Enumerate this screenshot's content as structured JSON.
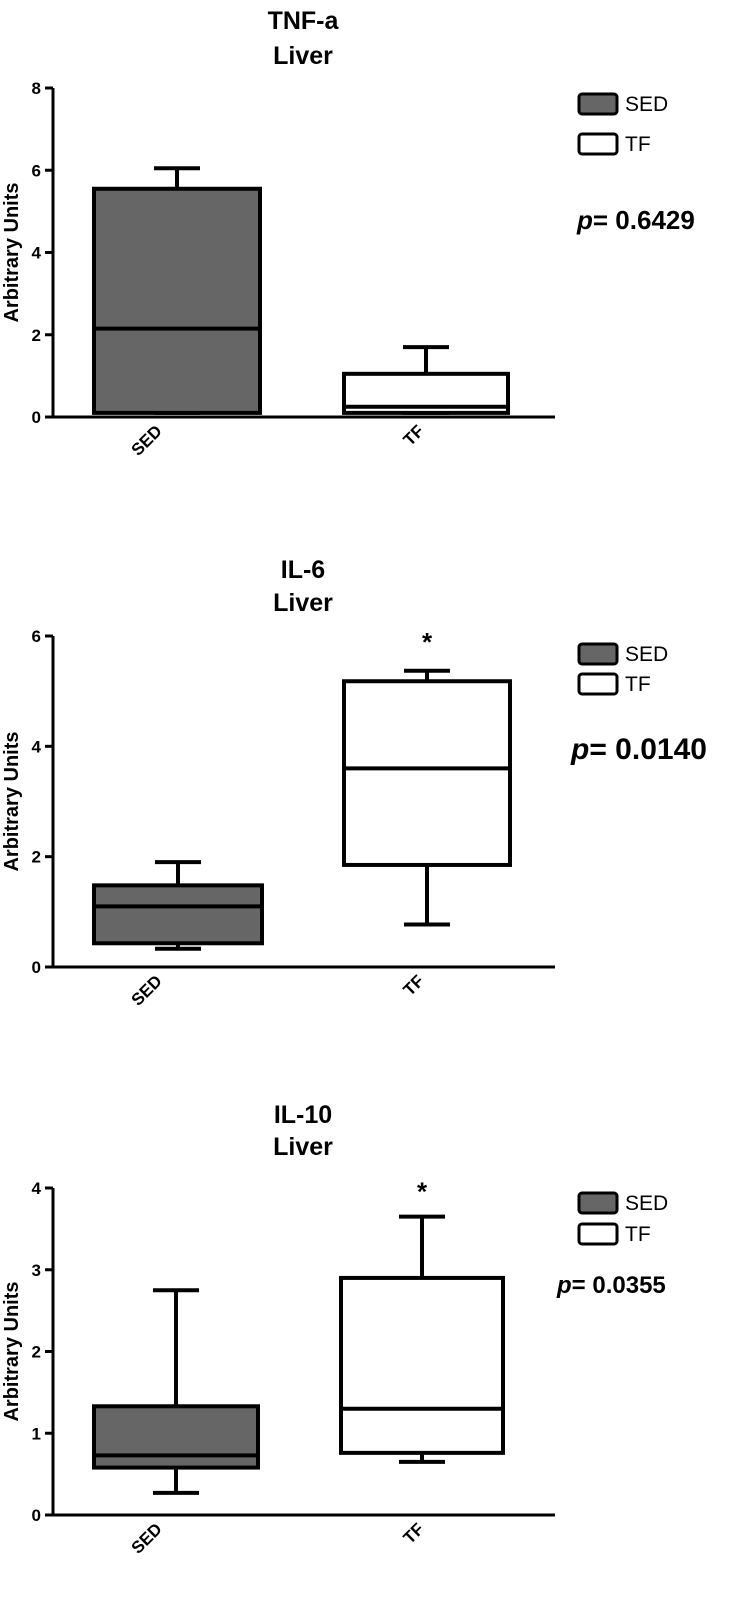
{
  "chart_data": [
    {
      "type": "box",
      "title": [
        "TNF-a",
        "Liver"
      ],
      "ylabel": "Arbitrary Units",
      "ylim": [
        0,
        8
      ],
      "yticks": [
        "0",
        "2",
        "4",
        "6",
        "8"
      ],
      "categories": [
        "SED",
        "TF"
      ],
      "boxes": [
        {
          "category": "SED",
          "min": 0.1,
          "q1": 0.1,
          "median": 2.15,
          "q3": 5.55,
          "max": 6.05,
          "fill": "#666666",
          "significance": ""
        },
        {
          "category": "TF",
          "min": 0.1,
          "q1": 0.1,
          "median": 0.25,
          "q3": 1.05,
          "max": 1.7,
          "fill": "#ffffff",
          "significance": ""
        }
      ],
      "legend": [
        {
          "label": "SED",
          "fill": "#666666"
        },
        {
          "label": "TF",
          "fill": "#ffffff"
        }
      ],
      "legend_position": "top-right",
      "p_prefix": "p",
      "p_value": "= 0.6429"
    },
    {
      "type": "box",
      "title": [
        "IL-6",
        "Liver"
      ],
      "ylabel": "Arbitrary Units",
      "ylim": [
        0,
        6
      ],
      "yticks": [
        "0",
        "2",
        "4",
        "6"
      ],
      "categories": [
        "SED",
        "TF"
      ],
      "boxes": [
        {
          "category": "SED",
          "min": 0.33,
          "q1": 0.43,
          "median": 1.1,
          "q3": 1.48,
          "max": 1.9,
          "fill": "#666666",
          "significance": ""
        },
        {
          "category": "TF",
          "min": 0.77,
          "q1": 1.85,
          "median": 3.6,
          "q3": 5.18,
          "max": 5.37,
          "fill": "#ffffff",
          "significance": "*"
        }
      ],
      "legend": [
        {
          "label": "SED",
          "fill": "#666666"
        },
        {
          "label": "TF",
          "fill": "#ffffff"
        }
      ],
      "legend_position": "top-right",
      "p_prefix": "p",
      "p_value": "= 0.0140"
    },
    {
      "type": "box",
      "title": [
        "IL-10",
        "Liver"
      ],
      "ylabel": "Arbitrary Units",
      "ylim": [
        0,
        4
      ],
      "yticks": [
        "0",
        "1",
        "2",
        "3",
        "4"
      ],
      "categories": [
        "SED",
        "TF"
      ],
      "boxes": [
        {
          "category": "SED",
          "min": 0.27,
          "q1": 0.58,
          "median": 0.73,
          "q3": 1.33,
          "max": 2.75,
          "fill": "#666666",
          "significance": ""
        },
        {
          "category": "TF",
          "min": 0.65,
          "q1": 0.76,
          "median": 1.3,
          "q3": 2.9,
          "max": 3.65,
          "fill": "#ffffff",
          "significance": "*"
        }
      ],
      "legend": [
        {
          "label": "SED",
          "fill": "#666666"
        },
        {
          "label": "TF",
          "fill": "#ffffff"
        }
      ],
      "legend_position": "top-right",
      "p_prefix": "p",
      "p_value": "= 0.0355"
    }
  ]
}
